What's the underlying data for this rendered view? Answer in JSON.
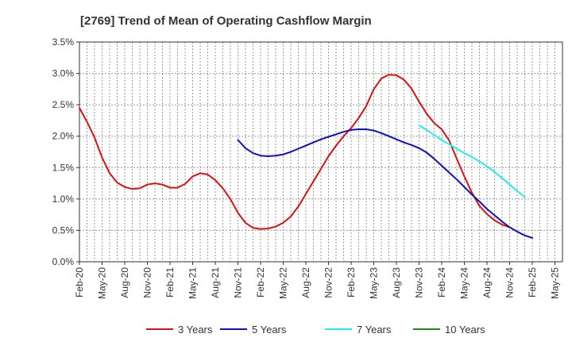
{
  "chart_data": {
    "type": "line",
    "title": "[2769]  Trend of Mean of Operating Cashflow Margin",
    "xlabel": "",
    "ylabel": "",
    "ylim": [
      0,
      3.5
    ],
    "yticks": [
      "0.0%",
      "0.5%",
      "1.0%",
      "1.5%",
      "2.0%",
      "2.5%",
      "3.0%",
      "3.5%"
    ],
    "xticks": [
      "Feb-20",
      "May-20",
      "Aug-20",
      "Nov-20",
      "Feb-21",
      "May-21",
      "Aug-21",
      "Nov-21",
      "Feb-22",
      "May-22",
      "Aug-22",
      "Nov-22",
      "Feb-23",
      "May-23",
      "Aug-23",
      "Nov-23",
      "Feb-24",
      "May-24",
      "Aug-24",
      "Nov-24",
      "Feb-25",
      "May-25"
    ],
    "grid": true,
    "legend_position": "bottom",
    "series": [
      {
        "name": "3 Years",
        "color": "#dd1111",
        "start_month": 0,
        "values": [
          2.45,
          2.23,
          1.98,
          1.66,
          1.41,
          1.26,
          1.19,
          1.16,
          1.17,
          1.23,
          1.25,
          1.23,
          1.18,
          1.18,
          1.24,
          1.36,
          1.41,
          1.39,
          1.3,
          1.17,
          1.0,
          0.78,
          0.62,
          0.54,
          0.52,
          0.53,
          0.56,
          0.62,
          0.72,
          0.88,
          1.08,
          1.28,
          1.48,
          1.68,
          1.85,
          2.0,
          2.13,
          2.29,
          2.48,
          2.75,
          2.92,
          2.98,
          2.97,
          2.9,
          2.76,
          2.55,
          2.36,
          2.21,
          2.11,
          1.93,
          1.64,
          1.36,
          1.1,
          0.89,
          0.76,
          0.66,
          0.59,
          0.55
        ]
      },
      {
        "name": "5 Years",
        "color": "#1111bb",
        "start_month": 21,
        "values": [
          1.94,
          1.81,
          1.73,
          1.69,
          1.68,
          1.69,
          1.71,
          1.75,
          1.8,
          1.85,
          1.9,
          1.95,
          1.99,
          2.03,
          2.07,
          2.1,
          2.11,
          2.11,
          2.09,
          2.05,
          2.0,
          1.95,
          1.9,
          1.86,
          1.81,
          1.74,
          1.64,
          1.53,
          1.42,
          1.31,
          1.19,
          1.07,
          0.96,
          0.84,
          0.74,
          0.64,
          0.55,
          0.48,
          0.42,
          0.38
        ]
      },
      {
        "name": "7 Years",
        "color": "#22eeee",
        "start_month": 45,
        "values": [
          2.17,
          2.1,
          2.02,
          1.94,
          1.87,
          1.8,
          1.73,
          1.67,
          1.6,
          1.52,
          1.43,
          1.33,
          1.23,
          1.13,
          1.03
        ]
      },
      {
        "name": "10 Years",
        "color": "#228822",
        "start_month": 0,
        "values": []
      }
    ]
  }
}
